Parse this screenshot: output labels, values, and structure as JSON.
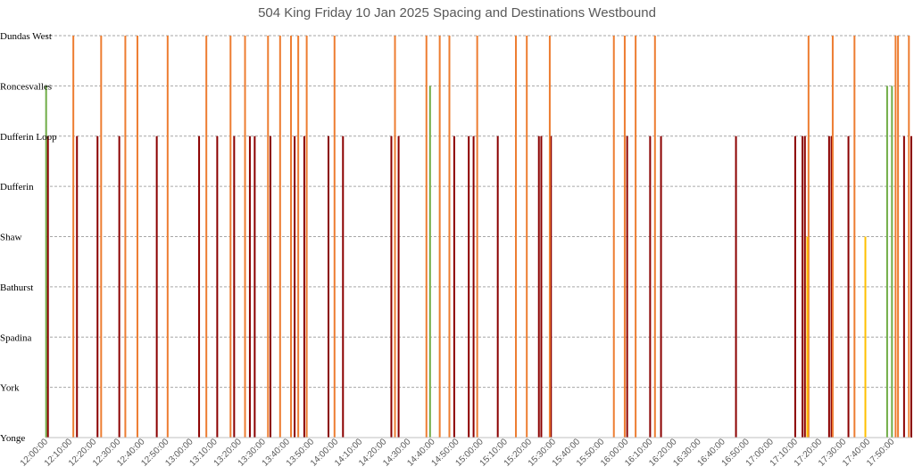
{
  "chart_data": {
    "type": "bar",
    "title": "504 King Friday 10 Jan 2025 Spacing and Destinations Westbound",
    "xlabel": "",
    "ylabel": "",
    "x_range": [
      "12:00:00",
      "17:58:00"
    ],
    "grid": "horizontal-dashed",
    "legend": "none",
    "y_categories": [
      "Yonge",
      "York",
      "Spadina",
      "Bathurst",
      "Shaw",
      "Dufferin",
      "Dufferin Loop",
      "Roncesvalles",
      "Dundas West"
    ],
    "x_tick_labels": [
      "12:00:00",
      "12:10:00",
      "12:20:00",
      "12:30:00",
      "12:40:00",
      "12:50:00",
      "13:00:00",
      "13:10:00",
      "13:20:00",
      "13:30:00",
      "13:40:00",
      "13:50:00",
      "14:00:00",
      "14:10:00",
      "14:20:00",
      "14:30:00",
      "14:40:00",
      "14:50:00",
      "15:00:00",
      "15:10:00",
      "15:20:00",
      "15:30:00",
      "15:40:00",
      "15:50:00",
      "16:00:00",
      "16:10:00",
      "16:20:00",
      "16:30:00",
      "16:40:00",
      "16:50:00",
      "17:00:00",
      "17:10:00",
      "17:20:00",
      "17:30:00",
      "17:40:00",
      "17:50:00"
    ],
    "colors": {
      "Dundas West": "#ed7d31",
      "Roncesvalles": "#70ad47",
      "Dufferin Loop": "#8b0000",
      "Shaw": "#ffc000"
    },
    "series": [
      {
        "destination": "Roncesvalles",
        "times": [
          "12:00:15",
          "14:39:00",
          "17:48:00",
          "17:50:00"
        ]
      },
      {
        "destination": "Dufferin Loop",
        "times": [
          "12:01:00",
          "12:13:00",
          "12:21:30",
          "12:30:30",
          "12:46:00",
          "13:03:30",
          "13:11:00",
          "13:18:00",
          "13:24:30",
          "13:26:30",
          "13:33:00",
          "13:43:00",
          "13:47:00",
          "13:57:00",
          "14:03:00",
          "14:23:00",
          "14:26:00",
          "14:49:00",
          "14:55:00",
          "14:57:00",
          "15:07:00",
          "15:24:00",
          "15:25:00",
          "15:29:00",
          "16:00:30",
          "16:10:00",
          "16:14:30",
          "16:45:30",
          "17:10:00",
          "17:13:00",
          "17:14:00",
          "17:24:00",
          "17:25:00",
          "17:32:00",
          "17:55:00",
          "17:58:00"
        ]
      },
      {
        "destination": "Dundas West",
        "times": [
          "12:11:30",
          "12:23:00",
          "12:33:00",
          "12:38:00",
          "12:50:30",
          "13:06:30",
          "13:16:30",
          "13:22:30",
          "13:32:00",
          "13:37:00",
          "13:41:30",
          "13:44:30",
          "13:48:00",
          "13:59:30",
          "14:24:30",
          "14:37:30",
          "14:43:00",
          "14:47:00",
          "14:58:30",
          "15:14:30",
          "15:19:00",
          "15:28:30",
          "15:55:00",
          "15:59:30",
          "16:04:00",
          "16:12:00",
          "17:15:30",
          "17:25:30",
          "17:34:30",
          "17:51:30",
          "17:52:30",
          "17:57:00"
        ]
      },
      {
        "destination": "Shaw",
        "times": [
          "17:15:00",
          "17:39:00"
        ]
      }
    ]
  }
}
